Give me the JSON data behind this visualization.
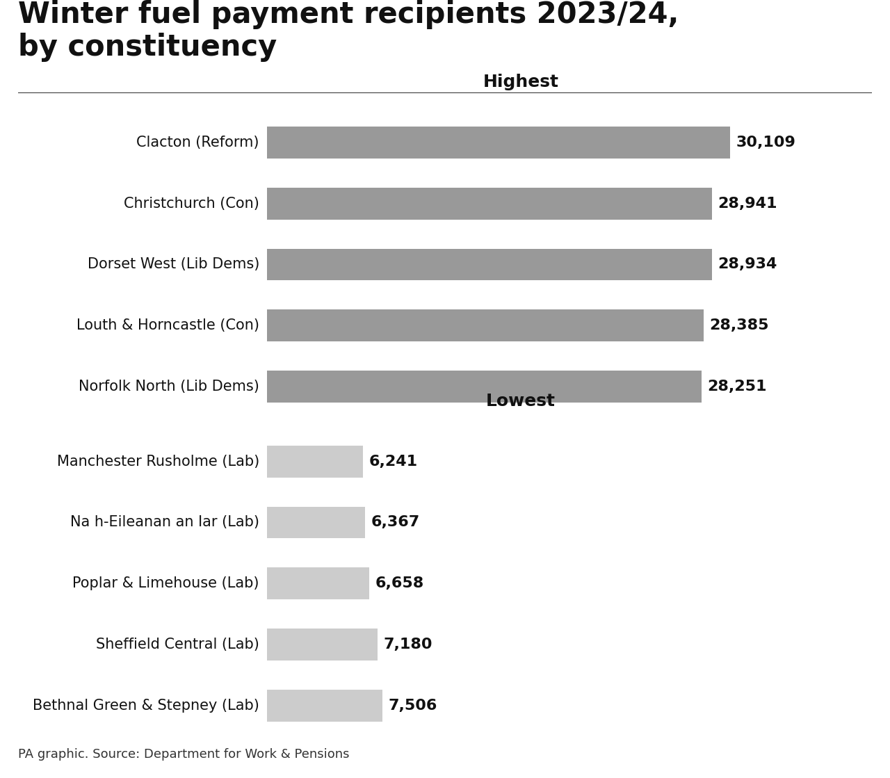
{
  "title": "Winter fuel payment recipients 2023/24,\nby constituency",
  "source": "PA graphic. Source: Department for Work & Pensions",
  "highest_label": "Highest",
  "lowest_label": "Lowest",
  "highest_categories": [
    "Clacton (Reform)",
    "Christchurch (Con)",
    "Dorset West (Lib Dems)",
    "Louth & Horncastle (Con)",
    "Norfolk North (Lib Dems)"
  ],
  "highest_values": [
    30109,
    28941,
    28934,
    28385,
    28251
  ],
  "highest_color": "#999999",
  "lowest_categories": [
    "Manchester Rusholme (Lab)",
    "Na h-Eileanan an Iar (Lab)",
    "Poplar & Limehouse (Lab)",
    "Sheffield Central (Lab)",
    "Bethnal Green & Stepney (Lab)"
  ],
  "lowest_values": [
    6241,
    6367,
    6658,
    7180,
    7506
  ],
  "lowest_color": "#cccccc",
  "background_color": "#ffffff",
  "title_fontsize": 30,
  "label_fontsize": 15,
  "value_fontsize": 16,
  "section_fontsize": 18,
  "source_fontsize": 13,
  "high_xlim": [
    0,
    33000
  ],
  "low_xlim": [
    0,
    33000
  ],
  "bar_height": 0.52
}
